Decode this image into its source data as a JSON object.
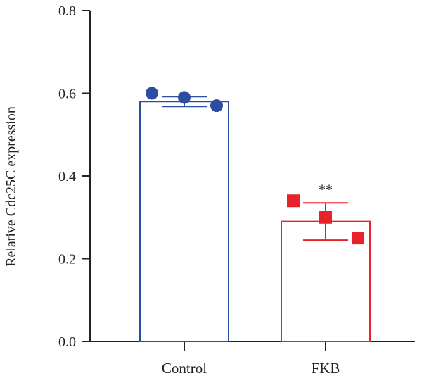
{
  "chart_data": {
    "type": "bar",
    "title": "",
    "xlabel": "",
    "ylabel": "Relative Cdc25C expression",
    "ylim": [
      0,
      0.8
    ],
    "yticks": [
      "0.0",
      "0.2",
      "0.4",
      "0.6",
      "0.8"
    ],
    "ytick_values": [
      0,
      0.2,
      0.4,
      0.6,
      0.8
    ],
    "categories": [
      "Control",
      "FKB"
    ],
    "values": [
      0.58,
      0.29
    ],
    "error": [
      0.012,
      0.045
    ],
    "points": [
      [
        0.6,
        0.59,
        0.57
      ],
      [
        0.34,
        0.3,
        0.25
      ]
    ],
    "markers": [
      "circle",
      "square"
    ],
    "colors": [
      "#2b4ea2",
      "#e8222a"
    ],
    "annotations": [
      "",
      "**"
    ],
    "grid": false,
    "legend": "none"
  }
}
